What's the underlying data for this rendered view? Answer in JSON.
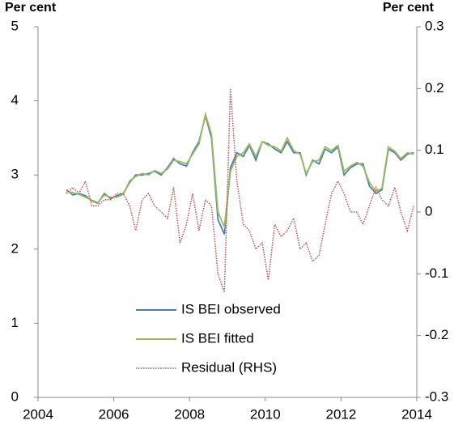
{
  "chart_data": {
    "type": "line",
    "ylabel": "Per cent",
    "y2label": "Per cent",
    "xlim": [
      2004,
      2014
    ],
    "xticks": [
      2004,
      2006,
      2008,
      2010,
      2012,
      2014
    ],
    "ylim": [
      0,
      5
    ],
    "yticks": [
      0,
      1,
      2,
      3,
      4,
      5
    ],
    "y2lim": [
      -0.3,
      0.3
    ],
    "y2ticks": [
      -0.3,
      -0.2,
      -0.1,
      0,
      0.1,
      0.2,
      0.3
    ],
    "grid": false,
    "legend": "lower left",
    "x": [
      2004.75,
      2004.92,
      2005.08,
      2005.25,
      2005.42,
      2005.58,
      2005.75,
      2005.92,
      2006.08,
      2006.25,
      2006.42,
      2006.58,
      2006.75,
      2006.92,
      2007.08,
      2007.25,
      2007.42,
      2007.58,
      2007.75,
      2007.92,
      2008.08,
      2008.25,
      2008.42,
      2008.58,
      2008.75,
      2008.92,
      2009.08,
      2009.25,
      2009.42,
      2009.58,
      2009.75,
      2009.92,
      2010.08,
      2010.25,
      2010.42,
      2010.58,
      2010.75,
      2010.92,
      2011.08,
      2011.25,
      2011.42,
      2011.58,
      2011.75,
      2011.92,
      2012.08,
      2012.25,
      2012.42,
      2012.58,
      2012.75,
      2012.92,
      2013.08,
      2013.25,
      2013.42,
      2013.58,
      2013.75,
      2013.92
    ],
    "series": [
      {
        "name": "IS BEI observed",
        "color": "#4a7ebb",
        "style": "solid",
        "values": [
          2.8,
          2.73,
          2.75,
          2.72,
          2.65,
          2.62,
          2.75,
          2.68,
          2.72,
          2.75,
          2.9,
          3.0,
          3.0,
          3.02,
          3.05,
          3.0,
          3.1,
          3.22,
          3.15,
          3.12,
          3.3,
          3.45,
          3.8,
          3.5,
          2.4,
          2.2,
          3.1,
          3.3,
          3.25,
          3.4,
          3.2,
          3.45,
          3.42,
          3.35,
          3.3,
          3.45,
          3.3,
          3.3,
          3.0,
          3.2,
          3.15,
          3.35,
          3.3,
          3.38,
          3.0,
          3.1,
          3.15,
          3.15,
          2.85,
          2.75,
          2.8,
          3.35,
          3.3,
          3.2,
          3.28,
          3.3
        ]
      },
      {
        "name": "IS BEI fitted",
        "color": "#9bbb59",
        "style": "solid",
        "values": [
          2.78,
          2.76,
          2.74,
          2.7,
          2.66,
          2.63,
          2.73,
          2.7,
          2.7,
          2.74,
          2.92,
          2.98,
          3.02,
          3.0,
          3.06,
          3.02,
          3.08,
          3.2,
          3.18,
          3.15,
          3.28,
          3.42,
          3.82,
          3.55,
          2.5,
          2.3,
          3.05,
          3.25,
          3.3,
          3.42,
          3.25,
          3.45,
          3.4,
          3.38,
          3.32,
          3.5,
          3.33,
          3.28,
          3.02,
          3.18,
          3.2,
          3.38,
          3.33,
          3.4,
          3.05,
          3.12,
          3.17,
          3.12,
          2.9,
          2.78,
          2.82,
          3.38,
          3.32,
          3.22,
          3.3,
          3.28
        ]
      },
      {
        "name": "Residual (RHS)",
        "color": "#c0504d",
        "style": "dotted",
        "axis": "y2",
        "values": [
          0.03,
          0.04,
          0.03,
          0.05,
          0.01,
          0.01,
          0.02,
          0.02,
          0.03,
          0.03,
          0.01,
          -0.03,
          0.02,
          0.03,
          0.01,
          0.0,
          -0.01,
          0.04,
          -0.05,
          -0.02,
          0.03,
          -0.03,
          0.02,
          0.01,
          -0.1,
          -0.13,
          0.2,
          0.05,
          -0.02,
          -0.03,
          -0.06,
          -0.05,
          -0.11,
          -0.02,
          -0.04,
          -0.03,
          -0.01,
          -0.06,
          -0.05,
          -0.08,
          -0.07,
          -0.02,
          0.03,
          0.05,
          0.03,
          0.0,
          0.0,
          -0.02,
          0.01,
          0.04,
          0.02,
          0.01,
          0.04,
          0.0,
          -0.03,
          0.01
        ]
      }
    ]
  }
}
